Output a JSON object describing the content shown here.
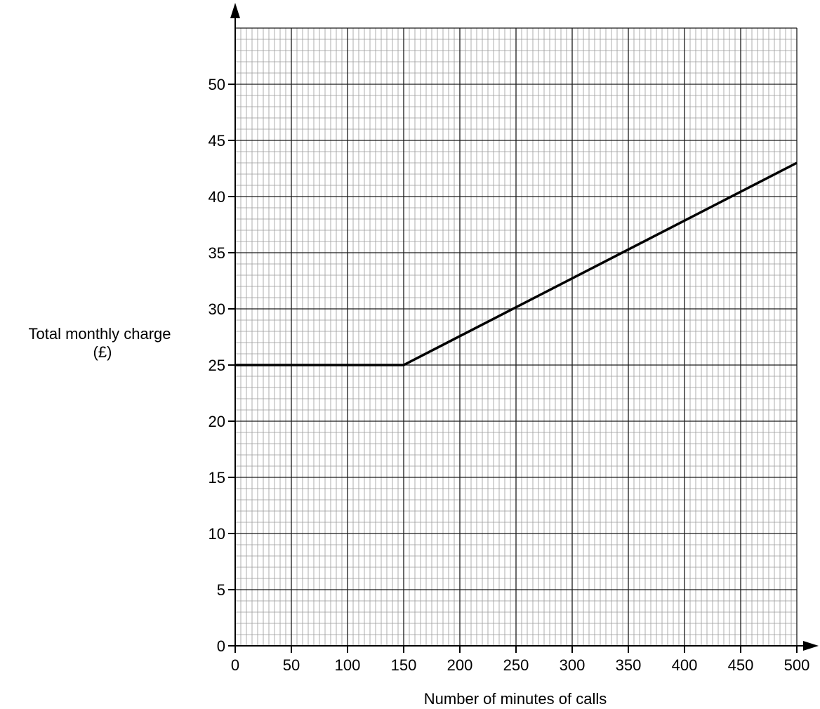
{
  "chart_data": {
    "type": "line",
    "title": "",
    "xlabel": "Number of minutes of calls",
    "ylabel_line1": "Total monthly charge",
    "ylabel_line2": "(£)",
    "xlim": [
      0,
      500
    ],
    "ylim": [
      0,
      50
    ],
    "x_major_step": 50,
    "y_major_step": 5,
    "x_minor_step": 5,
    "y_minor_step": 1,
    "grid": true,
    "xticks": [
      "0",
      "50",
      "100",
      "150",
      "200",
      "250",
      "300",
      "350",
      "400",
      "450",
      "500"
    ],
    "yticks": [
      "0",
      "5",
      "10",
      "15",
      "20",
      "25",
      "30",
      "35",
      "40",
      "45",
      "50"
    ],
    "series": [
      {
        "points": [
          {
            "x": 0,
            "y": 25
          },
          {
            "x": 150,
            "y": 25
          },
          {
            "x": 500,
            "y": 43
          }
        ]
      }
    ],
    "colors": {
      "minor_grid": "#9a9a9a",
      "major_grid": "#1a1a1a",
      "line": "#000000"
    }
  }
}
